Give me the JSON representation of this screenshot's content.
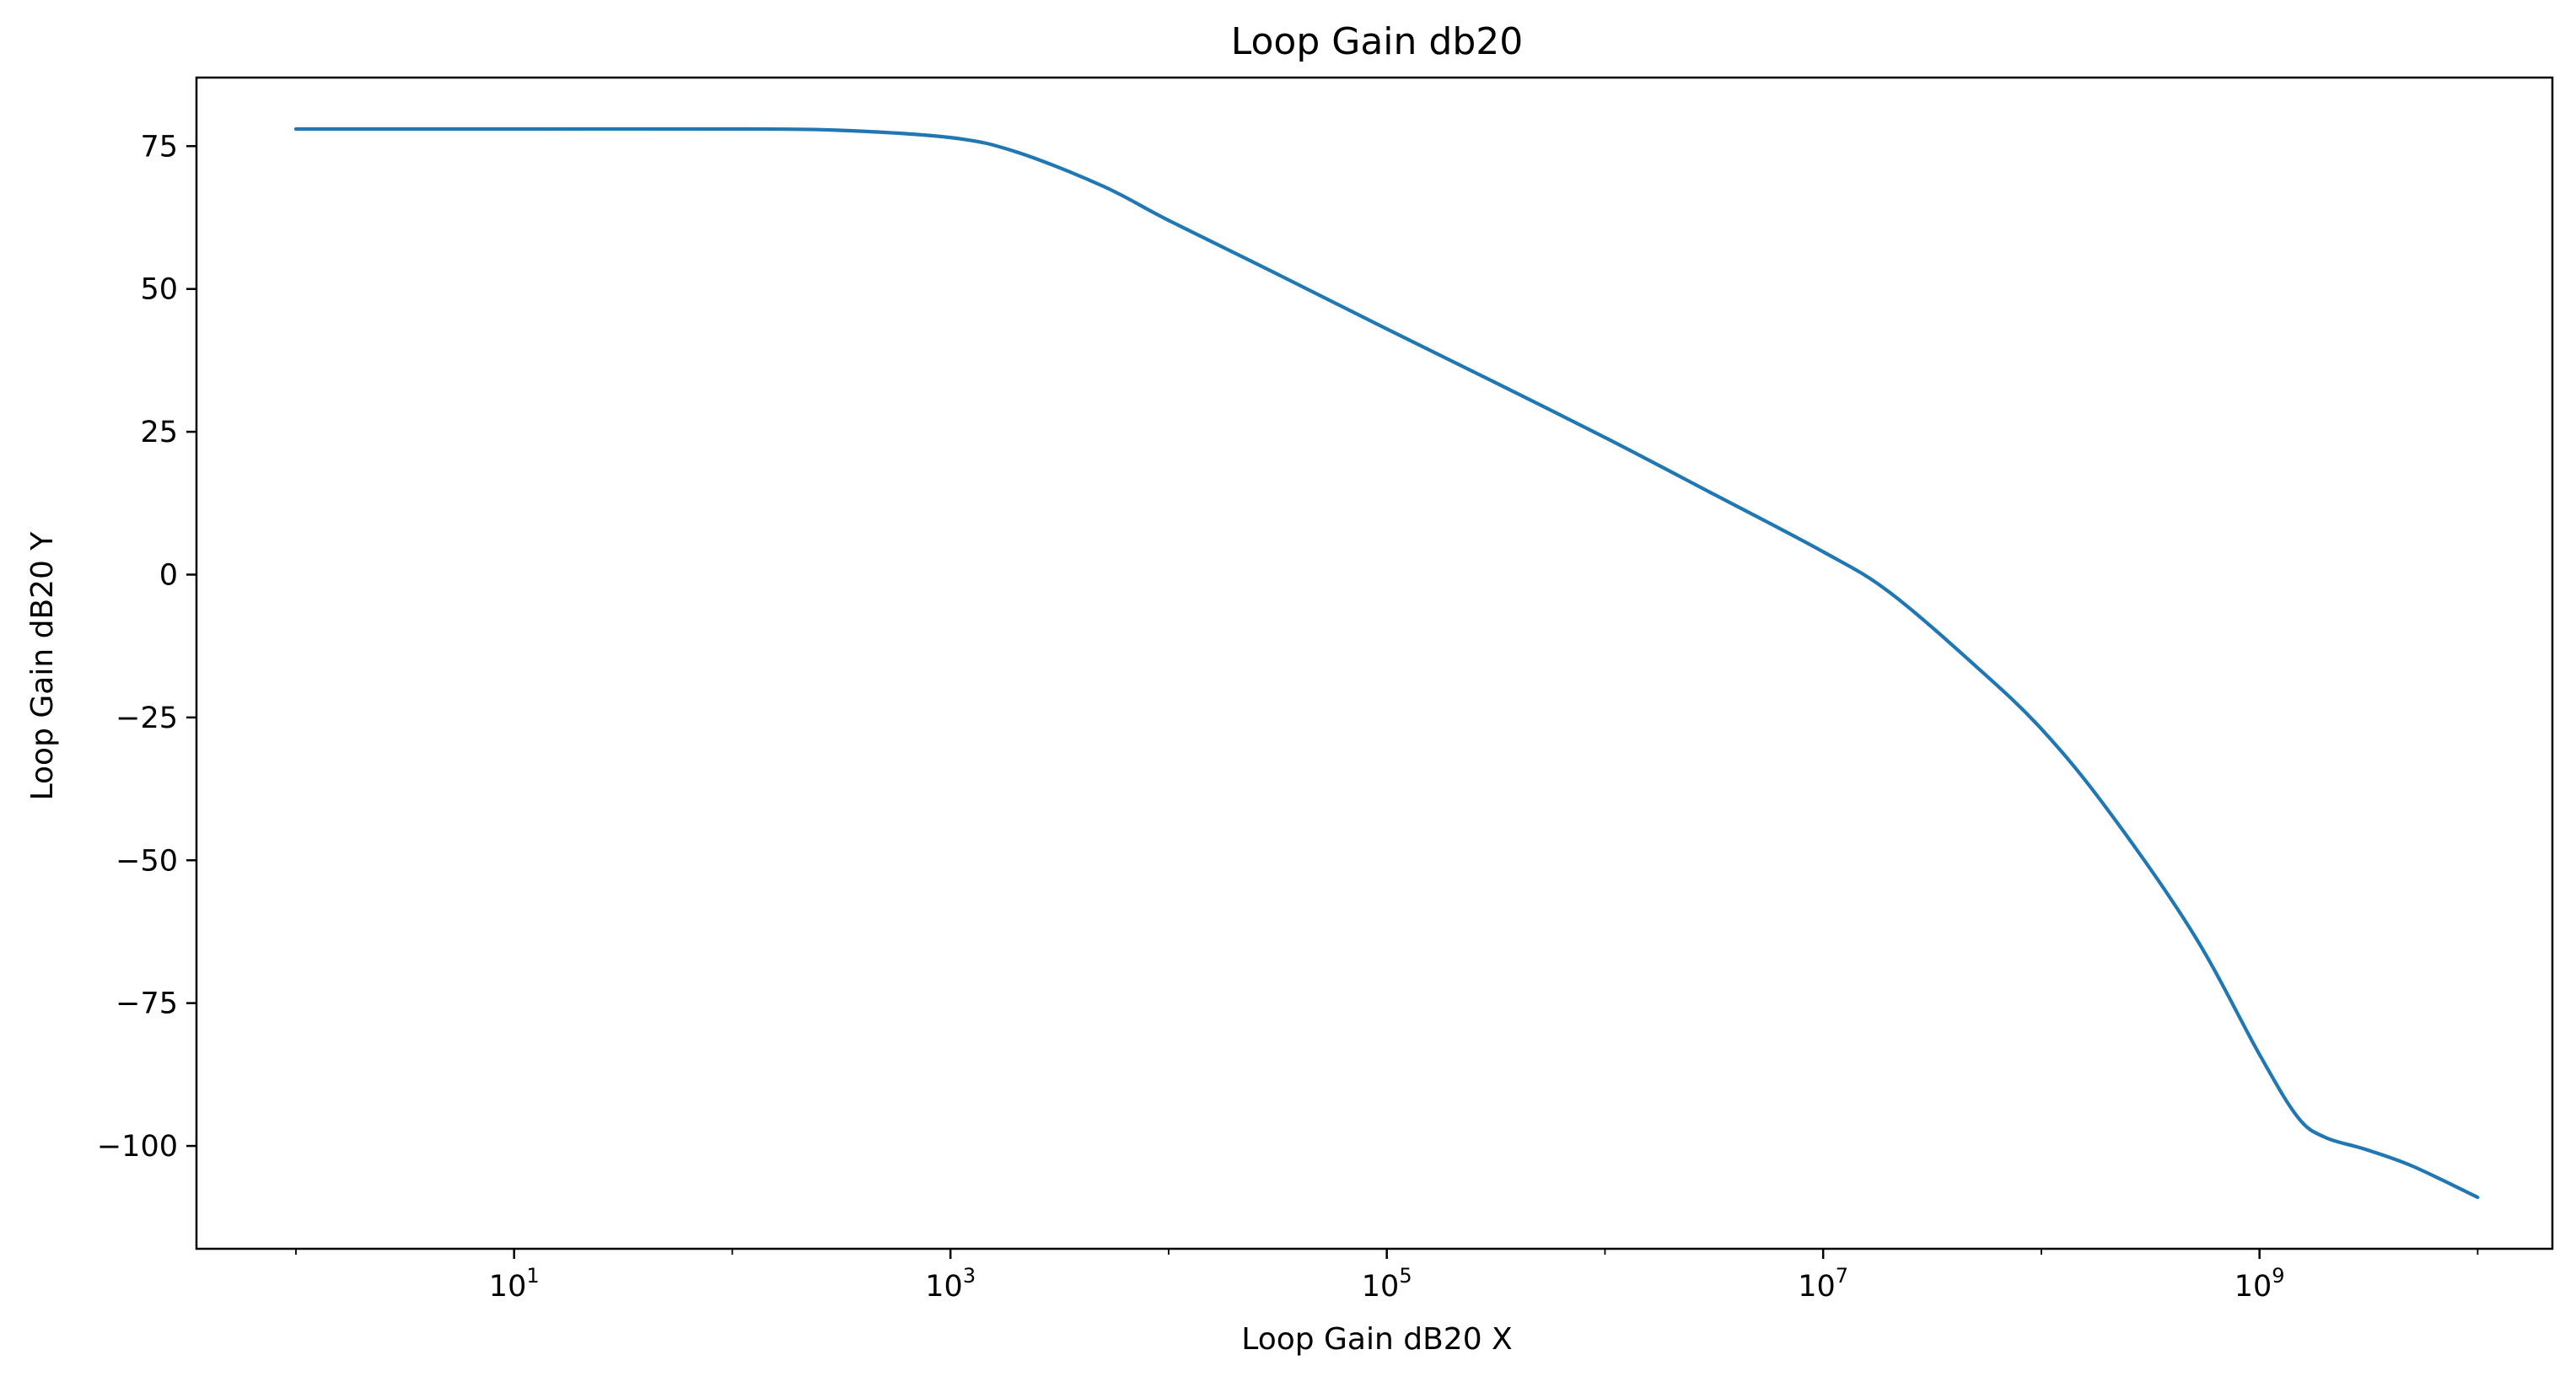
{
  "chart_data": {
    "type": "line",
    "title": "Loop Gain db20",
    "xlabel": "Loop Gain dB20 X",
    "ylabel": "Loop Gain dB20 Y",
    "xscale": "log",
    "xlim": [
      0.35,
      22000000000.0
    ],
    "ylim": [
      -118,
      87
    ],
    "grid": false,
    "line_color": "#1f77b4",
    "x_ticks": [
      {
        "base": "10",
        "exp": "1",
        "value": 10
      },
      {
        "base": "10",
        "exp": "3",
        "value": 1000
      },
      {
        "base": "10",
        "exp": "5",
        "value": 100000
      },
      {
        "base": "10",
        "exp": "7",
        "value": 10000000
      },
      {
        "base": "10",
        "exp": "9",
        "value": 1000000000
      }
    ],
    "y_ticks": [
      {
        "label": "75",
        "value": 75
      },
      {
        "label": "50",
        "value": 50
      },
      {
        "label": "25",
        "value": 25
      },
      {
        "label": "0",
        "value": 0
      },
      {
        "label": "−25",
        "value": -25
      },
      {
        "label": "−50",
        "value": -50
      },
      {
        "label": "−75",
        "value": -75
      },
      {
        "label": "−100",
        "value": -100
      }
    ],
    "series": [
      {
        "x": [
          1,
          10,
          100,
          300,
          1000,
          2000,
          5000,
          10000,
          30000,
          100000,
          300000,
          1000000,
          3000000,
          10000000,
          20000000,
          50000000,
          100000000,
          200000000,
          500000000,
          1000000000,
          1500000000,
          2000000000,
          3000000000,
          5000000000,
          10000000000
        ],
        "y": [
          78,
          78,
          78,
          77.8,
          76.5,
          74,
          68,
          62,
          53,
          43,
          34,
          24,
          14.5,
          4,
          -3,
          -16,
          -27,
          -41,
          -63,
          -84,
          -95,
          -98.5,
          -100.5,
          -103.5,
          -109
        ]
      }
    ]
  }
}
